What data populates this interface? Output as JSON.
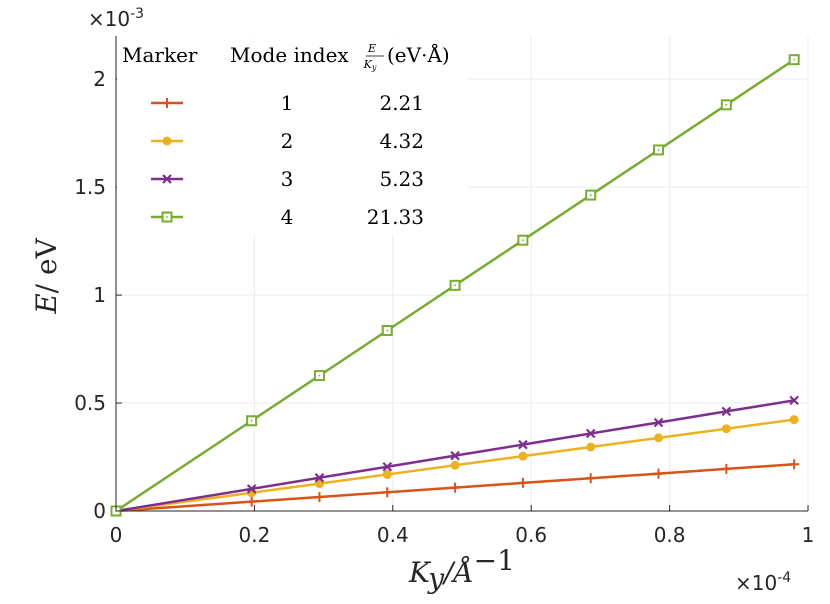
{
  "chart_data": {
    "type": "line",
    "x_exponent_label": "×10",
    "x_exponent_power": "-4",
    "y_exponent_label": "×10",
    "y_exponent_power": "-3",
    "xlabel_main": "K",
    "xlabel_sub": "y",
    "xlabel_rest": "/Å",
    "xlabel_sup": "−1",
    "ylabel_main": "E",
    "ylabel_rest": "/ eV",
    "xlim": [
      0,
      1
    ],
    "ylim": [
      0,
      2.2
    ],
    "xticks": [
      "0",
      "0.2",
      "0.4",
      "0.6",
      "0.8",
      "1"
    ],
    "xtick_values": [
      0,
      0.2,
      0.4,
      0.6,
      0.8,
      1
    ],
    "yticks": [
      "0",
      "0.5",
      "1",
      "1.5",
      "2"
    ],
    "ytick_values": [
      0,
      0.5,
      1,
      1.5,
      2
    ],
    "grid": true,
    "x": [
      0,
      0.196,
      0.294,
      0.392,
      0.49,
      0.588,
      0.686,
      0.784,
      0.882,
      0.98
    ],
    "series": [
      {
        "marker_type": "plus",
        "color": "#d95319",
        "mode_index": "1",
        "ratio": "2.21",
        "values": [
          0,
          0.0433,
          0.065,
          0.0866,
          0.1083,
          0.13,
          0.1516,
          0.1733,
          0.1949,
          0.2166
        ]
      },
      {
        "marker_type": "circle",
        "color": "#edb120",
        "mode_index": "2",
        "ratio": "4.32",
        "values": [
          0,
          0.0847,
          0.127,
          0.1693,
          0.2117,
          0.254,
          0.2964,
          0.3387,
          0.381,
          0.4234
        ]
      },
      {
        "marker_type": "x",
        "color": "#7e2f8e",
        "mode_index": "3",
        "ratio": "5.23",
        "values": [
          0,
          0.1025,
          0.1538,
          0.205,
          0.2563,
          0.3075,
          0.3588,
          0.41,
          0.4613,
          0.5125
        ]
      },
      {
        "marker_type": "square",
        "color": "#77ac30",
        "mode_index": "4",
        "ratio": "21.33",
        "values": [
          0,
          0.418,
          0.6271,
          0.8361,
          1.0452,
          1.2542,
          1.4632,
          1.6723,
          1.8813,
          2.0903
        ]
      }
    ],
    "legend": {
      "placement": "top-left",
      "header_marker": "Marker",
      "header_mode": "Mode index",
      "header_ratio_num": "E",
      "header_ratio_den": "K",
      "header_ratio_den_sub": "y",
      "header_ratio_unit": "(eV·Å)"
    }
  }
}
